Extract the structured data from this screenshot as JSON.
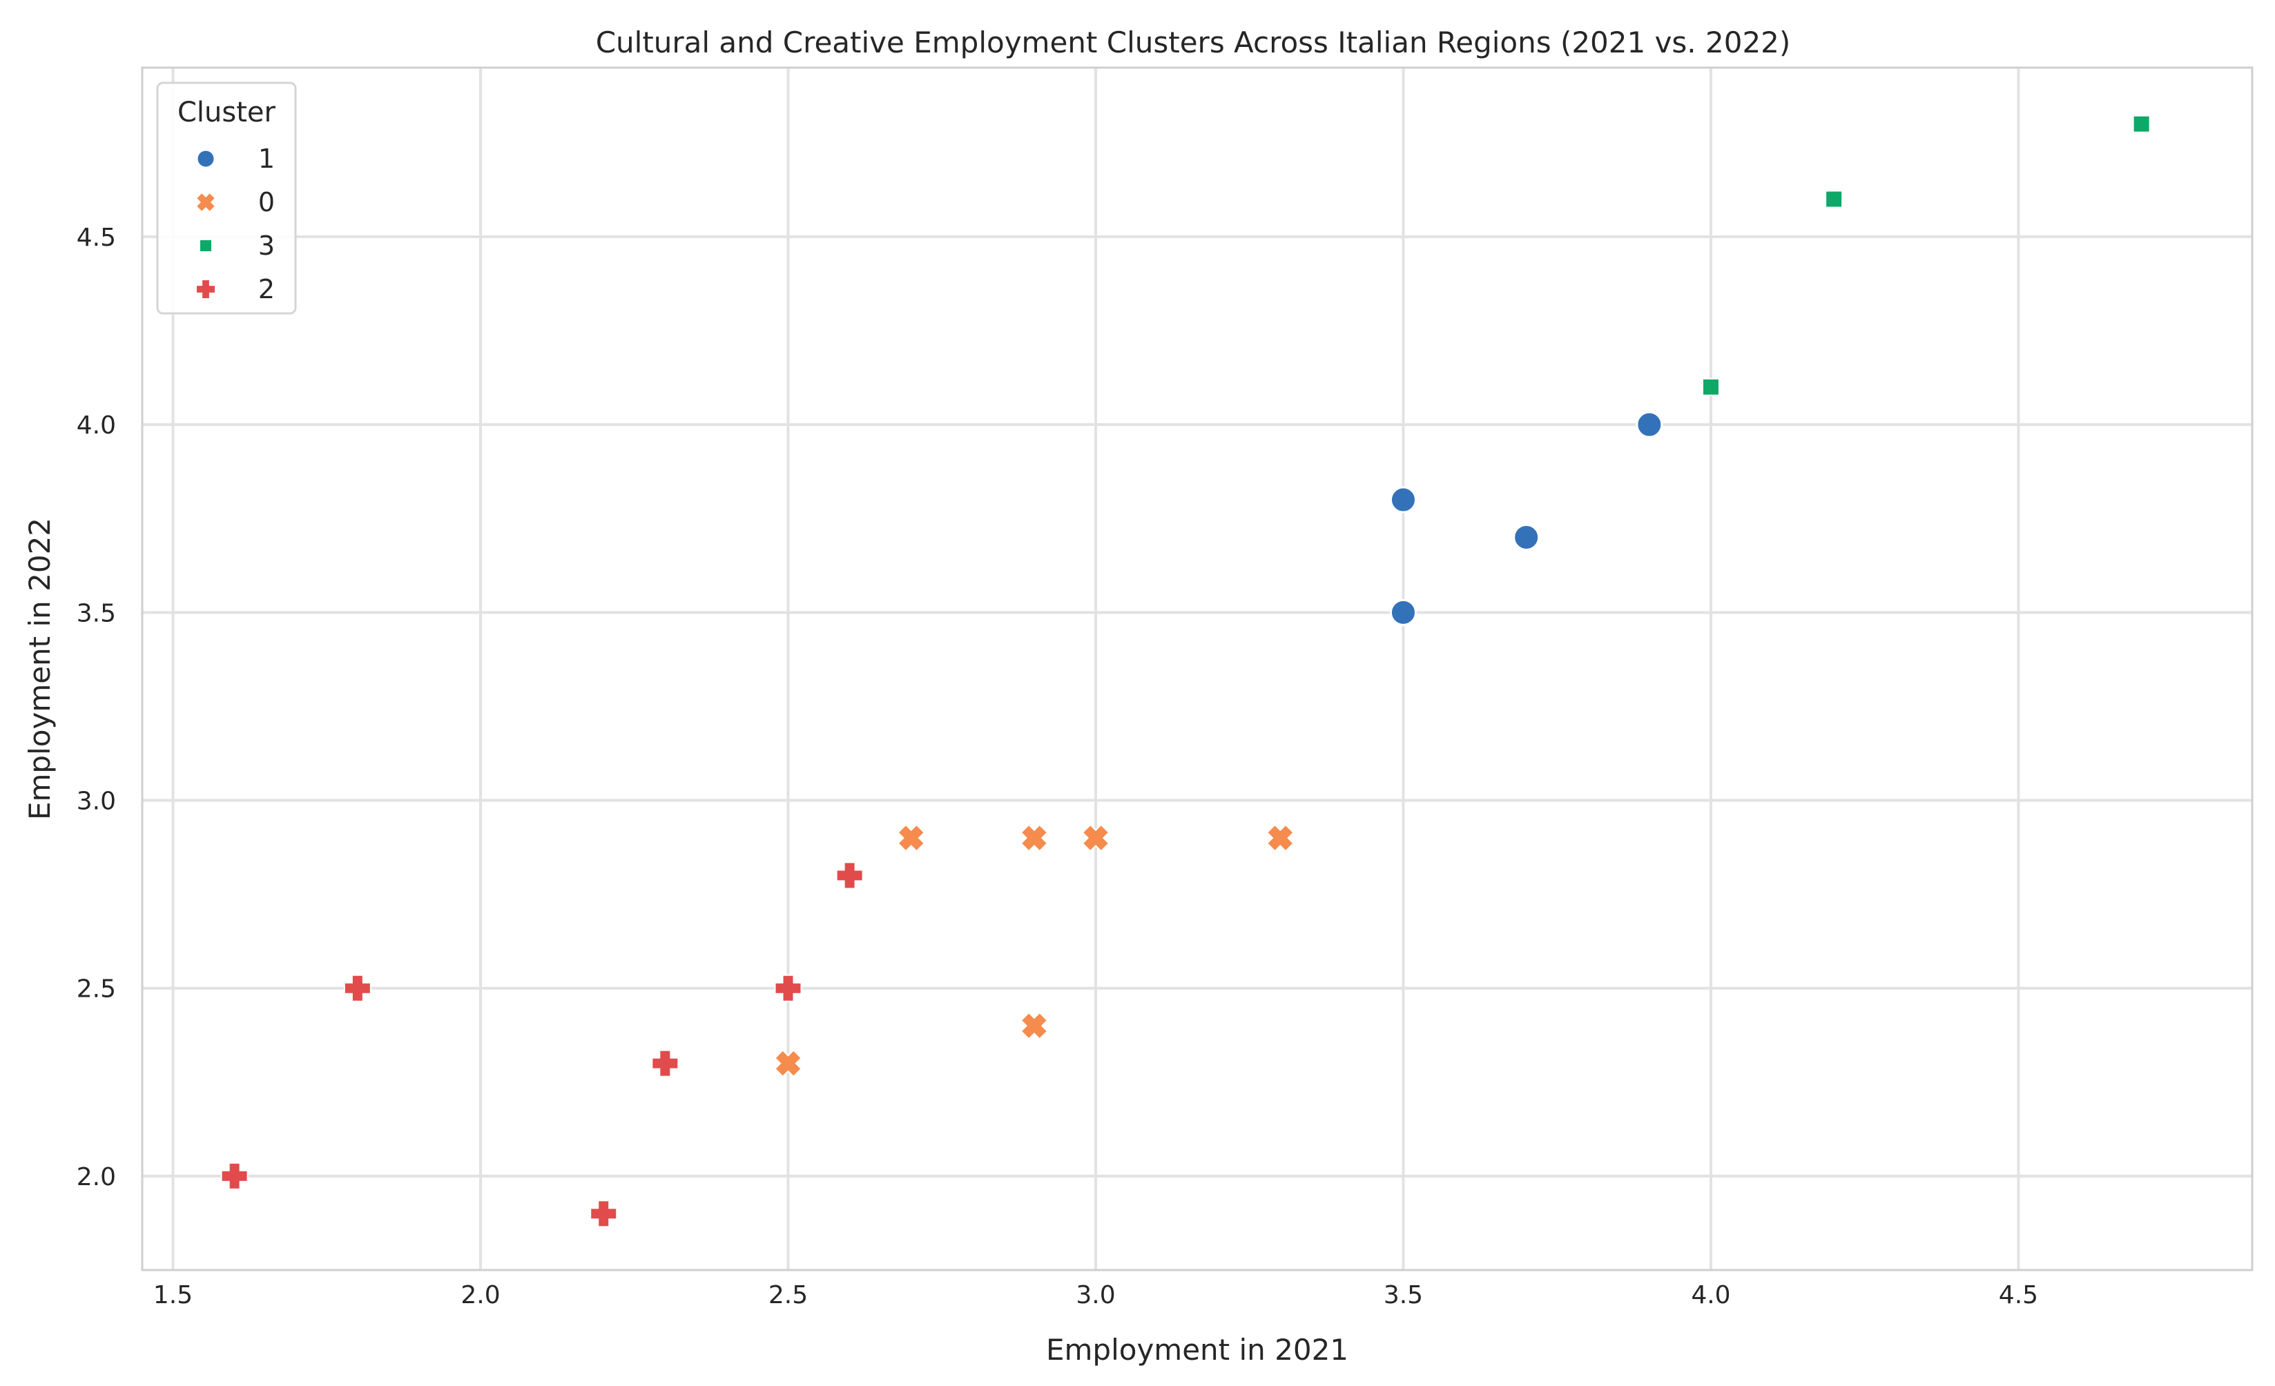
{
  "chart_data": {
    "type": "scatter",
    "title": "Cultural and Creative Employment Clusters Across Italian Regions (2021 vs. 2022)",
    "xlabel": "Employment in 2021",
    "ylabel": "Employment in 2022",
    "xlim": [
      1.45,
      4.88
    ],
    "ylim": [
      1.75,
      4.95
    ],
    "xticks": [
      1.5,
      2.0,
      2.5,
      3.0,
      3.5,
      4.0,
      4.5
    ],
    "yticks": [
      2.0,
      2.5,
      3.0,
      3.5,
      4.0,
      4.5
    ],
    "grid": true,
    "legend": {
      "title": "Cluster",
      "placement": "top-left",
      "order": [
        "1",
        "0",
        "3",
        "2"
      ]
    },
    "series": [
      {
        "name": "1",
        "marker": "circle",
        "color": "#3372b9",
        "points": [
          [
            3.5,
            3.8
          ],
          [
            3.7,
            3.7
          ],
          [
            3.9,
            4.0
          ],
          [
            3.5,
            3.5
          ]
        ]
      },
      {
        "name": "0",
        "marker": "x",
        "color": "#f58b4d",
        "points": [
          [
            2.7,
            2.9
          ],
          [
            2.9,
            2.9
          ],
          [
            3.0,
            2.9
          ],
          [
            3.3,
            2.9
          ],
          [
            2.9,
            2.4
          ],
          [
            2.5,
            2.3
          ]
        ]
      },
      {
        "name": "3",
        "marker": "square",
        "color": "#0ea868",
        "points": [
          [
            4.7,
            4.8
          ],
          [
            4.2,
            4.6
          ],
          [
            4.0,
            4.1
          ]
        ]
      },
      {
        "name": "2",
        "marker": "plus",
        "color": "#e14b4b",
        "points": [
          [
            1.6,
            2.0
          ],
          [
            1.8,
            2.5
          ],
          [
            2.2,
            1.9
          ],
          [
            2.3,
            2.3
          ],
          [
            2.5,
            2.5
          ],
          [
            2.6,
            2.8
          ]
        ]
      }
    ]
  }
}
